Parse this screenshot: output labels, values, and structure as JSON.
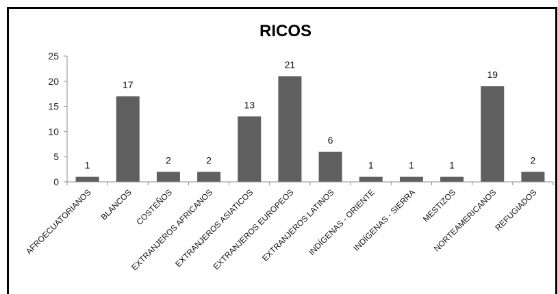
{
  "chart_data": {
    "type": "bar",
    "title": "RICOS",
    "xlabel": "",
    "ylabel": "",
    "ylim": [
      0,
      25
    ],
    "yticks": [
      0,
      5,
      10,
      15,
      20,
      25
    ],
    "grid": false,
    "legend": "none",
    "bar_color": "#5f5f5f",
    "categories": [
      "AFROECUATORIANOS",
      "BLANCOS",
      "COSTEÑOS",
      "EXTRANJEROS AFRICANOS",
      "EXTRANJEROS ASIATICOS",
      "EXTRANJEROS EUROPEOS",
      "EXTRANJEROS LATINOS",
      "INDÍGENAS - ORIENTE",
      "INDÍGENAS - SIERRA",
      "MESTIZOS",
      "NORTEAMERICANOS",
      "REFUGIADOS"
    ],
    "values": [
      1,
      17,
      2,
      2,
      13,
      21,
      6,
      1,
      1,
      1,
      19,
      2
    ]
  }
}
